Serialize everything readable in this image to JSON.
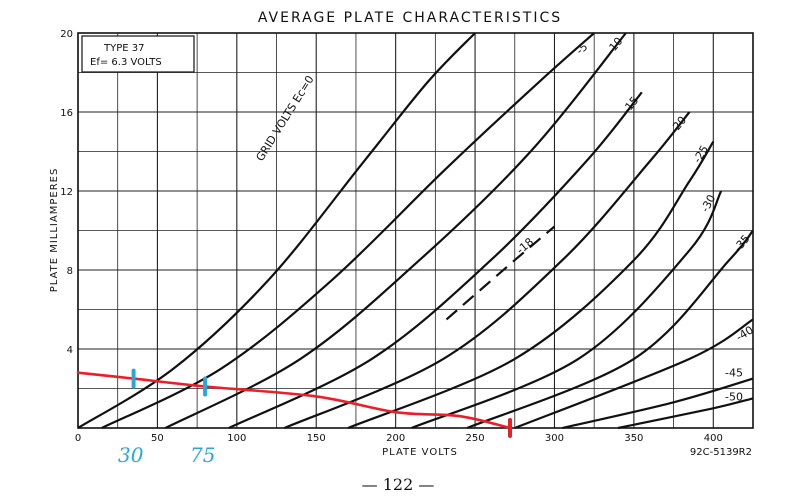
{
  "chart_data": {
    "type": "line",
    "title": "AVERAGE PLATE CHARACTERISTICS",
    "xlabel": "PLATE VOLTS",
    "ylabel": "PLATE MILLIAMPERES",
    "xlim": [
      0,
      425
    ],
    "ylim": [
      0,
      20
    ],
    "x_ticks": [
      "0",
      "50",
      "100",
      "150",
      "200",
      "250",
      "300",
      "350",
      "400"
    ],
    "y_ticks": [
      "4",
      "8",
      "12",
      "16",
      "20"
    ],
    "grid": true,
    "info_box": {
      "line1": "TYPE 37",
      "line2": "Ef= 6.3 VOLTS"
    },
    "family_label": "GRID VOLTS Ec=0",
    "figure_code": "92C-5139R2",
    "page_number": "— 122 —",
    "handwritten_marks": [
      "30",
      "75"
    ],
    "series": [
      {
        "label": "0",
        "x": [
          0,
          60,
          120,
          180,
          220,
          250
        ],
        "y": [
          0,
          3,
          7.5,
          13.5,
          17.5,
          20
        ]
      },
      {
        "label": "-5",
        "x": [
          15,
          90,
          160,
          230,
          290,
          325
        ],
        "y": [
          0,
          3,
          7.5,
          13,
          17.5,
          20
        ]
      },
      {
        "label": "-10",
        "x": [
          55,
          140,
          215,
          285,
          345
        ],
        "y": [
          0,
          3.5,
          8.5,
          14,
          20
        ]
      },
      {
        "label": "-15",
        "x": [
          95,
          185,
          260,
          320,
          355
        ],
        "y": [
          0,
          3.5,
          8.5,
          13.5,
          17
        ]
      },
      {
        "label": "-18",
        "x": [
          232,
          275,
          300
        ],
        "y": [
          5.5,
          8.5,
          10.2
        ],
        "dashed": true
      },
      {
        "label": "-20",
        "x": [
          130,
          230,
          305,
          360,
          385
        ],
        "y": [
          0,
          3.5,
          8.5,
          13.5,
          16
        ]
      },
      {
        "label": "-25",
        "x": [
          170,
          275,
          350,
          385,
          400
        ],
        "y": [
          0,
          3.5,
          8.5,
          12.5,
          14.5
        ]
      },
      {
        "label": "-30",
        "x": [
          210,
          315,
          385,
          405
        ],
        "y": [
          0,
          3.5,
          9,
          12
        ]
      },
      {
        "label": "-35",
        "x": [
          245,
          350,
          410,
          425
        ],
        "y": [
          0,
          3.5,
          8.5,
          10
        ]
      },
      {
        "label": "-40",
        "x": [
          275,
          385,
          425
        ],
        "y": [
          0,
          3.5,
          5.5
        ]
      },
      {
        "label": "-45",
        "x": [
          305,
          375,
          425
        ],
        "y": [
          0,
          1.3,
          2.5
        ]
      },
      {
        "label": "-50",
        "x": [
          340,
          400,
          425
        ],
        "y": [
          0,
          1.0,
          1.5
        ]
      }
    ],
    "load_line": {
      "x": [
        0,
        35,
        80,
        150,
        200,
        240,
        272
      ],
      "y": [
        2.8,
        2.5,
        2.1,
        1.6,
        0.8,
        0.6,
        0
      ]
    },
    "markers": [
      {
        "x": 35,
        "y": 2.5
      },
      {
        "x": 80,
        "y": 2.1
      },
      {
        "x": 272,
        "y": 0
      }
    ]
  }
}
